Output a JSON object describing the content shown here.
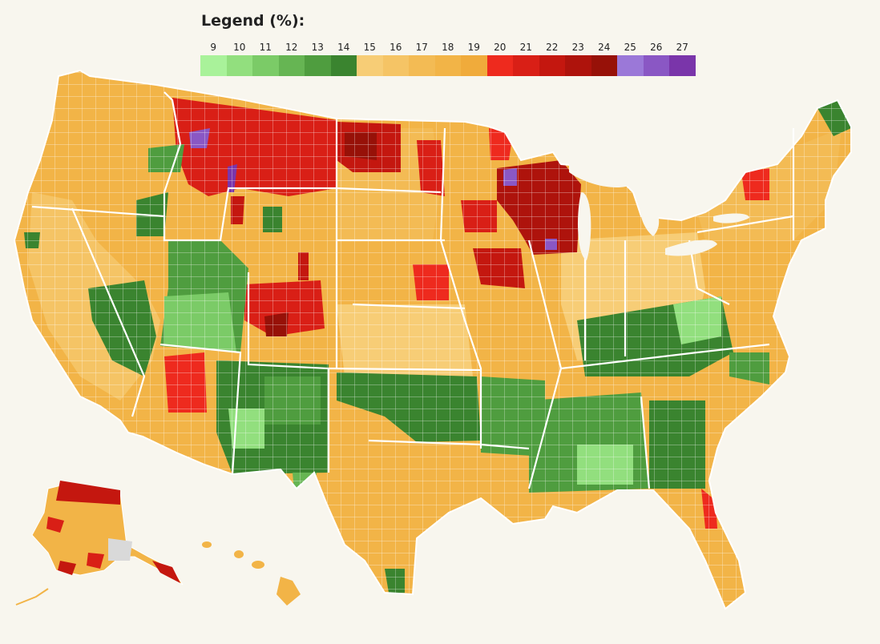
{
  "legend": {
    "title": "Legend (%):",
    "items": [
      {
        "label": "9",
        "color": "#a9f29a"
      },
      {
        "label": "10",
        "color": "#92df7e"
      },
      {
        "label": "11",
        "color": "#7bcb67"
      },
      {
        "label": "12",
        "color": "#66b553"
      },
      {
        "label": "13",
        "color": "#4f9d3f"
      },
      {
        "label": "14",
        "color": "#3a842f"
      },
      {
        "label": "15",
        "color": "#f7cd76"
      },
      {
        "label": "16",
        "color": "#f5c465"
      },
      {
        "label": "17",
        "color": "#f3bb54"
      },
      {
        "label": "18",
        "color": "#f2b447"
      },
      {
        "label": "19",
        "color": "#f0ab3b"
      },
      {
        "label": "20",
        "color": "#ee2a1e"
      },
      {
        "label": "21",
        "color": "#d91f16"
      },
      {
        "label": "22",
        "color": "#c4170f"
      },
      {
        "label": "23",
        "color": "#ae130c"
      },
      {
        "label": "24",
        "color": "#971108"
      },
      {
        "label": "25",
        "color": "#9b78d8"
      },
      {
        "label": "26",
        "color": "#8a57c4"
      },
      {
        "label": "27",
        "color": "#7a35aa"
      }
    ]
  },
  "colors": {
    "background": "#f8f6ee",
    "border": "#ffffff",
    "nodata": "#d9d9d9"
  }
}
